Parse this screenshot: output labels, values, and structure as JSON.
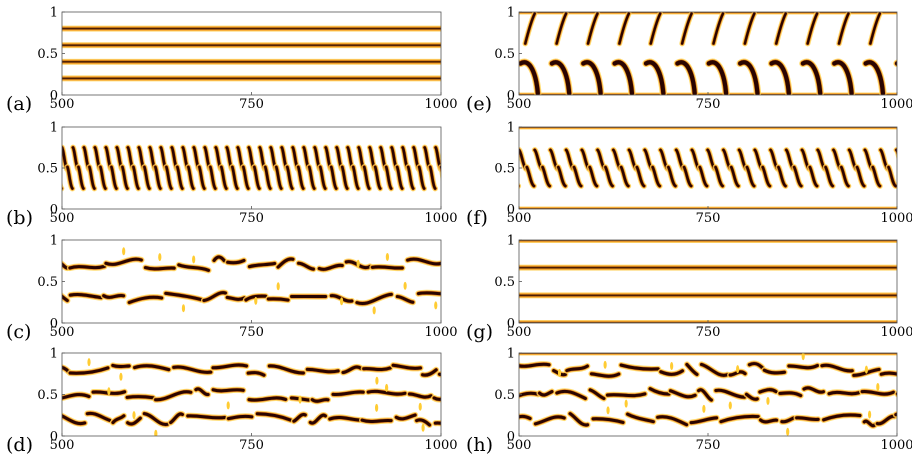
{
  "chart_data": [
    {
      "panel": "(a)",
      "type": "heatmap",
      "x_ticks": [
        500,
        750,
        1000
      ],
      "y_ticks": [
        0,
        0.5,
        1
      ],
      "xlim": [
        500,
        1000
      ],
      "ylim": [
        0,
        1
      ],
      "colormap": [
        "#ffffff",
        "#ffe27a",
        "#f59a1e",
        "#b5350c",
        "#2a0500"
      ],
      "pattern": "stationary",
      "stripe_positions": [
        0.2,
        0.4,
        0.6,
        0.8
      ]
    },
    {
      "panel": "(b)",
      "type": "heatmap",
      "x_ticks": [
        500,
        750,
        1000
      ],
      "y_ticks": [
        0,
        0.5,
        1
      ],
      "xlim": [
        500,
        1000
      ],
      "ylim": [
        0,
        1
      ],
      "colormap": [
        "#ffffff",
        "#ffe27a",
        "#f59a1e",
        "#b5350c",
        "#2a0500"
      ],
      "pattern": "zigzag",
      "center": 0.5,
      "amplitude": 0.25,
      "period": 14.5
    },
    {
      "panel": "(c)",
      "type": "heatmap",
      "x_ticks": [
        500,
        750,
        1000
      ],
      "y_ticks": [
        0,
        0.5,
        1
      ],
      "xlim": [
        500,
        1000
      ],
      "ylim": [
        0,
        1
      ],
      "colormap": [
        "#ffffff",
        "#ffe27a",
        "#f59a1e",
        "#b5350c",
        "#2a0500"
      ],
      "pattern": "irregular",
      "stripe_positions": [
        0.3,
        0.7
      ]
    },
    {
      "panel": "(d)",
      "type": "heatmap",
      "x_ticks": [
        500,
        750,
        1000
      ],
      "y_ticks": [
        0,
        0.5,
        1
      ],
      "xlim": [
        500,
        1000
      ],
      "ylim": [
        0,
        1
      ],
      "colormap": [
        "#ffffff",
        "#ffe27a",
        "#f59a1e",
        "#b5350c",
        "#2a0500"
      ],
      "pattern": "irregular",
      "stripe_positions": [
        0.2,
        0.5,
        0.8
      ]
    },
    {
      "panel": "(e)",
      "type": "heatmap",
      "x_ticks": [
        500,
        750,
        1000
      ],
      "y_ticks": [
        0,
        0.5,
        1
      ],
      "xlim": [
        500,
        1000
      ],
      "ylim": [
        0,
        1
      ],
      "colormap": [
        "#ffffff",
        "#ffe27a",
        "#f59a1e",
        "#b5350c",
        "#2a0500"
      ],
      "pattern": "hooks",
      "period": 41.5,
      "boundary_stripes": [
        0,
        1
      ]
    },
    {
      "panel": "(f)",
      "type": "heatmap",
      "x_ticks": [
        500,
        750,
        1000
      ],
      "y_ticks": [
        0,
        0.5,
        1
      ],
      "xlim": [
        500,
        1000
      ],
      "ylim": [
        0,
        1
      ],
      "colormap": [
        "#ffffff",
        "#ffe27a",
        "#f59a1e",
        "#b5350c",
        "#2a0500"
      ],
      "pattern": "zigzag",
      "center": 0.5,
      "amplitude": 0.22,
      "period": 20.8,
      "boundary_stripes": [
        0,
        1
      ]
    },
    {
      "panel": "(g)",
      "type": "heatmap",
      "x_ticks": [
        500,
        750,
        1000
      ],
      "y_ticks": [
        0,
        0.5,
        1
      ],
      "xlim": [
        500,
        1000
      ],
      "ylim": [
        0,
        1
      ],
      "colormap": [
        "#ffffff",
        "#ffe27a",
        "#f59a1e",
        "#b5350c",
        "#2a0500"
      ],
      "pattern": "stationary",
      "stripe_positions": [
        0,
        0.333,
        0.667,
        1
      ]
    },
    {
      "panel": "(h)",
      "type": "heatmap",
      "x_ticks": [
        500,
        750,
        1000
      ],
      "y_ticks": [
        0,
        0.5,
        1
      ],
      "xlim": [
        500,
        1000
      ],
      "ylim": [
        0,
        1
      ],
      "colormap": [
        "#ffffff",
        "#ffe27a",
        "#f59a1e",
        "#b5350c",
        "#2a0500"
      ],
      "pattern": "irregular",
      "stripe_positions": [
        0.2,
        0.5,
        0.8
      ],
      "boundary_stripes": [
        1
      ]
    }
  ]
}
